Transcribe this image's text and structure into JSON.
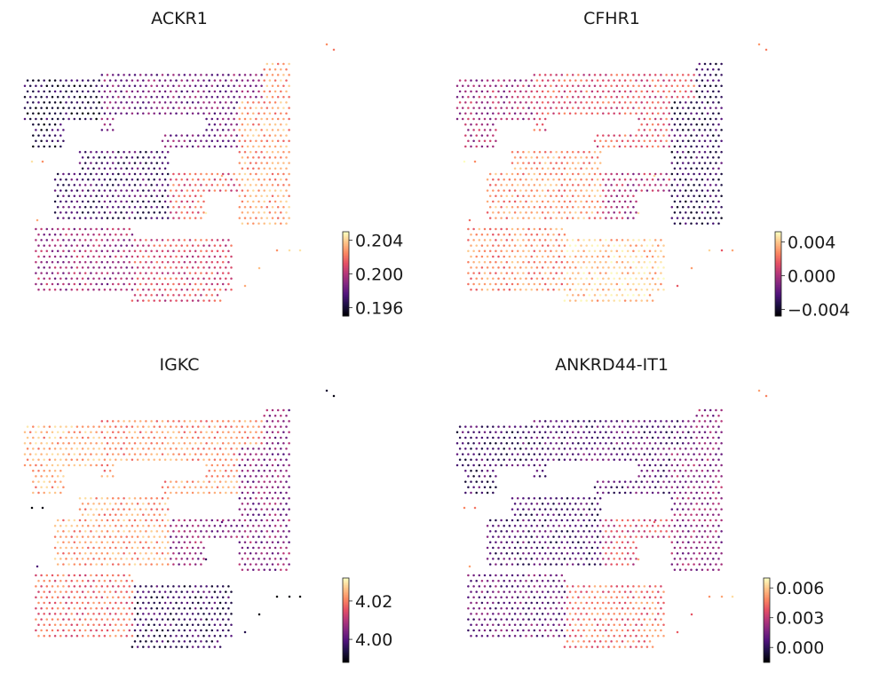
{
  "figure": {
    "background": "#ffffff"
  },
  "colormap": {
    "name": "magma",
    "stops": [
      "#000004",
      "#1c1044",
      "#4f127b",
      "#812581",
      "#b5367a",
      "#e55064",
      "#fb8761",
      "#fec287",
      "#fcfdbf"
    ]
  },
  "chart_data": [
    {
      "type": "scatter",
      "title": "ACKR1",
      "xlabel": "",
      "ylabel": "",
      "grid": false,
      "colorbar": {
        "ticks": [
          "0.204",
          "0.200",
          "0.196"
        ],
        "vmin": 0.195,
        "vmax": 0.205,
        "tick_values": [
          0.204,
          0.2,
          0.196
        ]
      },
      "regions": [
        {
          "name": "upper-left tissue",
          "value": 0.1963
        },
        {
          "name": "upper band",
          "value": 0.1985
        },
        {
          "name": "upper-right column",
          "value": 0.203
        },
        {
          "name": "middle-left lobe",
          "value": 0.1972
        },
        {
          "name": "middle-right extension",
          "value": 0.2015
        },
        {
          "name": "lower-left lobe",
          "value": 0.1995
        },
        {
          "name": "lower-right lobe",
          "value": 0.201
        },
        {
          "name": "outlier spots",
          "value": 0.2035
        }
      ]
    },
    {
      "type": "scatter",
      "title": "CFHR1",
      "xlabel": "",
      "ylabel": "",
      "grid": false,
      "colorbar": {
        "ticks": [
          "0.004",
          "0.000",
          "−0.004"
        ],
        "vmin": -0.0048,
        "vmax": 0.0052,
        "tick_values": [
          0.004,
          0.0,
          -0.004
        ]
      },
      "regions": [
        {
          "name": "upper-left tissue",
          "value": -0.0002
        },
        {
          "name": "upper band",
          "value": 0.0015
        },
        {
          "name": "upper-right column",
          "value": -0.003
        },
        {
          "name": "middle-left lobe",
          "value": 0.003
        },
        {
          "name": "middle-right extension",
          "value": 0.0
        },
        {
          "name": "lower-left lobe",
          "value": 0.0028
        },
        {
          "name": "lower-right lobe",
          "value": 0.004
        },
        {
          "name": "outlier spots",
          "value": 0.0035
        }
      ]
    },
    {
      "type": "scatter",
      "title": "IGKC",
      "xlabel": "",
      "ylabel": "",
      "grid": false,
      "colorbar": {
        "ticks": [
          "4.02",
          "4.00"
        ],
        "vmin": 3.988,
        "vmax": 4.032,
        "tick_values": [
          4.02,
          4.0
        ]
      },
      "regions": [
        {
          "name": "upper-left tissue",
          "value": 4.024
        },
        {
          "name": "upper band",
          "value": 4.022
        },
        {
          "name": "upper-right column",
          "value": 4.005
        },
        {
          "name": "middle-left lobe",
          "value": 4.023
        },
        {
          "name": "middle-right extension",
          "value": 4.006
        },
        {
          "name": "lower-left lobe",
          "value": 4.018
        },
        {
          "name": "lower-right lobe",
          "value": 3.996
        },
        {
          "name": "outlier spots",
          "value": 3.992
        }
      ]
    },
    {
      "type": "scatter",
      "title": "ANKRD44-IT1",
      "xlabel": "",
      "ylabel": "",
      "grid": false,
      "colorbar": {
        "ticks": [
          "0.006",
          "0.003",
          "0.000"
        ],
        "vmin": -0.0015,
        "vmax": 0.007,
        "tick_values": [
          0.006,
          0.003,
          0.0
        ]
      },
      "regions": [
        {
          "name": "upper-left tissue",
          "value": 0.0003
        },
        {
          "name": "upper band",
          "value": 0.0008
        },
        {
          "name": "upper-right column",
          "value": 0.002
        },
        {
          "name": "middle-left lobe",
          "value": 0.0006
        },
        {
          "name": "middle-right extension",
          "value": 0.0035
        },
        {
          "name": "lower-left lobe",
          "value": 0.0012
        },
        {
          "name": "lower-right lobe",
          "value": 0.0045
        },
        {
          "name": "outlier spots",
          "value": 0.005
        }
      ]
    }
  ]
}
